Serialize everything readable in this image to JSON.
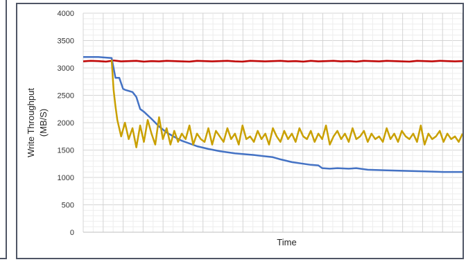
{
  "chart_data": {
    "type": "line",
    "title": "",
    "xlabel": "Time",
    "ylabel": [
      "Write Throughput",
      "(MB/S)"
    ],
    "ylim": [
      0,
      4000
    ],
    "yticks": [
      0,
      500,
      1000,
      1500,
      2000,
      2500,
      3000,
      3500,
      4000
    ],
    "xlim": [
      0,
      100
    ],
    "grid": true,
    "legend": "none",
    "series": [
      {
        "color": "#c00000",
        "x": [
          0,
          2,
          4,
          6,
          8,
          10,
          12,
          14,
          16,
          18,
          20,
          22,
          24,
          26,
          28,
          30,
          32,
          34,
          36,
          38,
          40,
          42,
          44,
          46,
          48,
          50,
          52,
          54,
          56,
          58,
          60,
          62,
          64,
          66,
          68,
          70,
          72,
          74,
          76,
          78,
          80,
          82,
          84,
          86,
          88,
          90,
          92,
          94,
          96,
          98,
          100
        ],
        "values": [
          3120,
          3130,
          3125,
          3115,
          3135,
          3120,
          3125,
          3130,
          3115,
          3125,
          3120,
          3130,
          3125,
          3120,
          3115,
          3130,
          3125,
          3120,
          3125,
          3130,
          3120,
          3115,
          3130,
          3125,
          3120,
          3125,
          3130,
          3120,
          3125,
          3115,
          3130,
          3120,
          3125,
          3130,
          3120,
          3125,
          3115,
          3130,
          3125,
          3120,
          3130,
          3125,
          3120,
          3115,
          3130,
          3125,
          3120,
          3130,
          3125,
          3120,
          3125
        ]
      },
      {
        "color": "#4472c4",
        "x": [
          0,
          4,
          7.5,
          8,
          8.5,
          9.5,
          10.5,
          11,
          12,
          13,
          14,
          15,
          16,
          18,
          20,
          22,
          24,
          26,
          28,
          30,
          33,
          36,
          40,
          45,
          50,
          52,
          55,
          60,
          62,
          63,
          65,
          67,
          70,
          72,
          75,
          80,
          85,
          90,
          95,
          100
        ],
        "values": [
          3200,
          3200,
          3180,
          3000,
          2820,
          2820,
          2620,
          2600,
          2580,
          2560,
          2470,
          2250,
          2200,
          2070,
          1930,
          1820,
          1740,
          1670,
          1620,
          1570,
          1520,
          1480,
          1440,
          1410,
          1370,
          1330,
          1280,
          1230,
          1220,
          1170,
          1160,
          1170,
          1160,
          1170,
          1140,
          1130,
          1120,
          1110,
          1100,
          1100
        ]
      },
      {
        "color": "#c9a000",
        "x": [
          0,
          4,
          7.5,
          8,
          8.5,
          9,
          10,
          11,
          12,
          13,
          14,
          15,
          16,
          17,
          18,
          19,
          20,
          21,
          22,
          23,
          24,
          25,
          26,
          27,
          28,
          29,
          30,
          31,
          32,
          33,
          34,
          35,
          36,
          37,
          38,
          39,
          40,
          41,
          42,
          43,
          44,
          45,
          46,
          47,
          48,
          49,
          50,
          51,
          52,
          53,
          54,
          55,
          56,
          57,
          58,
          59,
          60,
          61,
          62,
          63,
          64,
          65,
          66,
          67,
          68,
          69,
          70,
          71,
          72,
          73,
          74,
          75,
          76,
          77,
          78,
          79,
          80,
          81,
          82,
          83,
          84,
          85,
          86,
          87,
          88,
          89,
          90,
          91,
          92,
          93,
          94,
          95,
          96,
          97,
          98,
          99,
          100
        ],
        "values": [
          null,
          null,
          3150,
          2600,
          2300,
          2050,
          1750,
          2000,
          1700,
          1900,
          1550,
          1950,
          1650,
          2050,
          1800,
          1600,
          2100,
          1700,
          1900,
          1600,
          1850,
          1650,
          1800,
          1700,
          1950,
          1600,
          1800,
          1700,
          1650,
          1900,
          1600,
          1850,
          1750,
          1650,
          1900,
          1700,
          1800,
          1600,
          1950,
          1700,
          1750,
          1650,
          1850,
          1700,
          1800,
          1600,
          1900,
          1750,
          1650,
          1850,
          1700,
          1800,
          1650,
          1900,
          1750,
          1700,
          1850,
          1650,
          1800,
          1700,
          1950,
          1600,
          1750,
          1850,
          1700,
          1800,
          1650,
          1900,
          1700,
          1750,
          1850,
          1650,
          1800,
          1700,
          1750,
          1650,
          1900,
          1700,
          1800,
          1650,
          1850,
          1750,
          1700,
          1800,
          1650,
          1950,
          1600,
          1800,
          1700,
          1750,
          1850,
          1650,
          1800,
          1700,
          1750,
          1650,
          1800
        ]
      }
    ]
  }
}
